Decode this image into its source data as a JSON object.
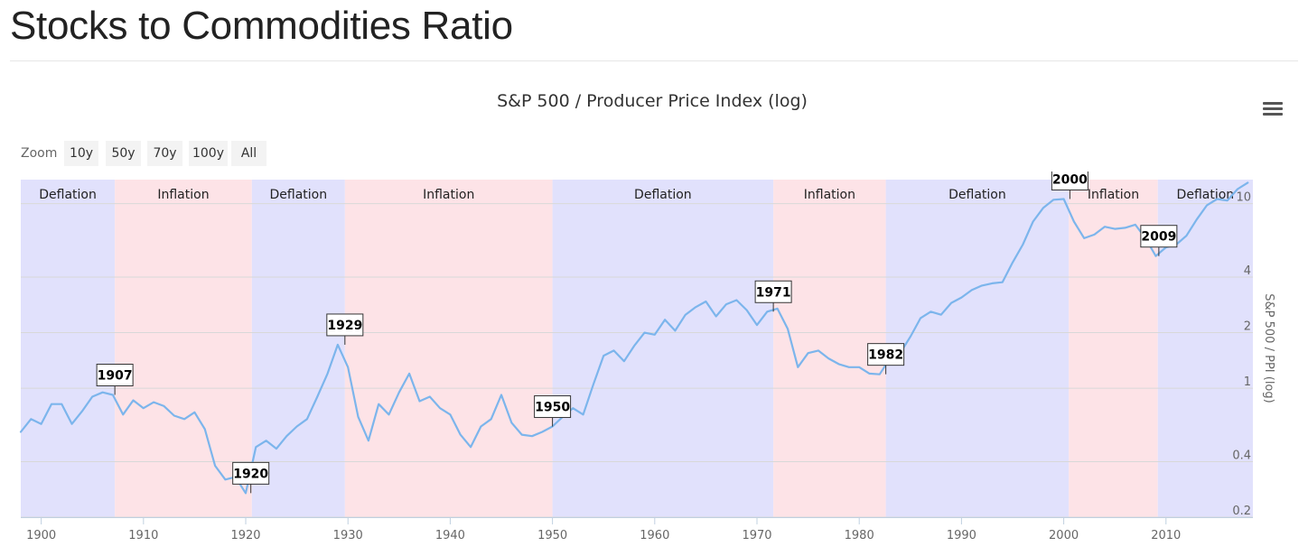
{
  "page": {
    "title": "Stocks to Commodities Ratio"
  },
  "toolbar": {
    "zoom_label": "Zoom",
    "zoom_buttons": [
      "10y",
      "50y",
      "70y",
      "100y",
      "All"
    ],
    "menu_icon": "hamburger-menu-icon"
  },
  "colors": {
    "line": "#7cb5ec",
    "deflation_band": "#e1e1fc",
    "inflation_band": "#fde3e7",
    "gridline": "#d8d8d8",
    "axis": "#c0d0e0"
  },
  "chart_data": {
    "type": "line",
    "title": "S&P 500 / Producer Price Index (log)",
    "xlabel": "",
    "ylabel": "S&P 500 / PPI (log)",
    "yscale": "log",
    "xlim": [
      1898,
      2018.5
    ],
    "ylim": [
      0.2,
      13.5
    ],
    "x_ticks": [
      1900,
      1910,
      1920,
      1930,
      1940,
      1950,
      1960,
      1970,
      1980,
      1990,
      2000,
      2010
    ],
    "y_ticks": [
      0.2,
      0.4,
      1,
      2,
      4,
      10
    ],
    "y_tick_labels": [
      "0.2",
      "0.4",
      "1",
      "2",
      "4",
      "10"
    ],
    "grid": true,
    "bands": [
      {
        "label": "Deflation",
        "type": "deflation",
        "from": 1898,
        "to": 1907.2
      },
      {
        "label": "Inflation",
        "type": "inflation",
        "from": 1907.2,
        "to": 1920.6
      },
      {
        "label": "Deflation",
        "type": "deflation",
        "from": 1920.6,
        "to": 1929.7
      },
      {
        "label": "Inflation",
        "type": "inflation",
        "from": 1929.7,
        "to": 1950.0
      },
      {
        "label": "Deflation",
        "type": "deflation",
        "from": 1950.0,
        "to": 1971.6
      },
      {
        "label": "Inflation",
        "type": "inflation",
        "from": 1971.6,
        "to": 1982.6
      },
      {
        "label": "Deflation",
        "type": "deflation",
        "from": 1982.6,
        "to": 2000.5
      },
      {
        "label": "Inflation",
        "type": "inflation",
        "from": 2000.5,
        "to": 2009.2
      },
      {
        "label": "Deflation",
        "type": "deflation",
        "from": 2009.2,
        "to": 2018.5
      }
    ],
    "annotations": [
      {
        "label": "1907",
        "x": 1907.2,
        "y": 0.92
      },
      {
        "label": "1920",
        "x": 1920.5,
        "y": 0.27
      },
      {
        "label": "1929",
        "x": 1929.7,
        "y": 1.72
      },
      {
        "label": "1950",
        "x": 1950.0,
        "y": 0.62
      },
      {
        "label": "1971",
        "x": 1971.6,
        "y": 2.6
      },
      {
        "label": "1982",
        "x": 1982.6,
        "y": 1.19
      },
      {
        "label": "2000",
        "x": 2000.6,
        "y": 10.6
      },
      {
        "label": "2009",
        "x": 2009.3,
        "y": 5.2
      }
    ],
    "series": [
      {
        "x": [
          1898,
          1899,
          1900,
          1901,
          1902,
          1903,
          1904,
          1905,
          1906,
          1907,
          1908,
          1909,
          1910,
          1911,
          1912,
          1913,
          1914,
          1915,
          1916,
          1917,
          1918,
          1919,
          1920,
          1921,
          1922,
          1923,
          1924,
          1925,
          1926,
          1927,
          1928,
          1929,
          1930,
          1931,
          1932,
          1933,
          1934,
          1935,
          1936,
          1937,
          1938,
          1939,
          1940,
          1941,
          1942,
          1943,
          1944,
          1945,
          1946,
          1947,
          1948,
          1949,
          1950,
          1951,
          1952,
          1953,
          1954,
          1955,
          1956,
          1957,
          1958,
          1959,
          1960,
          1961,
          1962,
          1963,
          1964,
          1965,
          1966,
          1967,
          1968,
          1969,
          1970,
          1971,
          1972,
          1973,
          1974,
          1975,
          1976,
          1977,
          1978,
          1979,
          1980,
          1981,
          1982,
          1983,
          1984,
          1985,
          1986,
          1987,
          1988,
          1989,
          1990,
          1991,
          1992,
          1993,
          1994,
          1995,
          1996,
          1997,
          1998,
          1999,
          2000,
          2001,
          2002,
          2003,
          2004,
          2005,
          2006,
          2007,
          2008,
          2009,
          2010,
          2011,
          2012,
          2013,
          2014,
          2015,
          2016,
          2017,
          2018
        ],
        "values": [
          0.58,
          0.68,
          0.64,
          0.82,
          0.82,
          0.64,
          0.75,
          0.9,
          0.95,
          0.92,
          0.72,
          0.86,
          0.78,
          0.84,
          0.8,
          0.71,
          0.68,
          0.74,
          0.6,
          0.38,
          0.32,
          0.33,
          0.27,
          0.48,
          0.52,
          0.47,
          0.55,
          0.62,
          0.68,
          0.9,
          1.2,
          1.72,
          1.3,
          0.7,
          0.52,
          0.82,
          0.72,
          0.95,
          1.2,
          0.85,
          0.9,
          0.78,
          0.72,
          0.56,
          0.48,
          0.62,
          0.68,
          0.92,
          0.65,
          0.56,
          0.55,
          0.58,
          0.62,
          0.7,
          0.78,
          0.72,
          1.05,
          1.5,
          1.6,
          1.4,
          1.7,
          2.0,
          1.95,
          2.35,
          2.05,
          2.5,
          2.75,
          2.95,
          2.45,
          2.85,
          3.0,
          2.65,
          2.2,
          2.6,
          2.7,
          2.1,
          1.3,
          1.55,
          1.6,
          1.45,
          1.35,
          1.3,
          1.3,
          1.2,
          1.19,
          1.45,
          1.55,
          1.9,
          2.4,
          2.6,
          2.5,
          2.9,
          3.1,
          3.4,
          3.6,
          3.7,
          3.75,
          4.8,
          6.0,
          8.0,
          9.5,
          10.5,
          10.6,
          8.0,
          6.5,
          6.8,
          7.5,
          7.3,
          7.4,
          7.7,
          6.5,
          5.2,
          5.8,
          6.0,
          6.7,
          8.2,
          9.8,
          10.6,
          10.4,
          12.0,
          13.0
        ]
      }
    ]
  }
}
